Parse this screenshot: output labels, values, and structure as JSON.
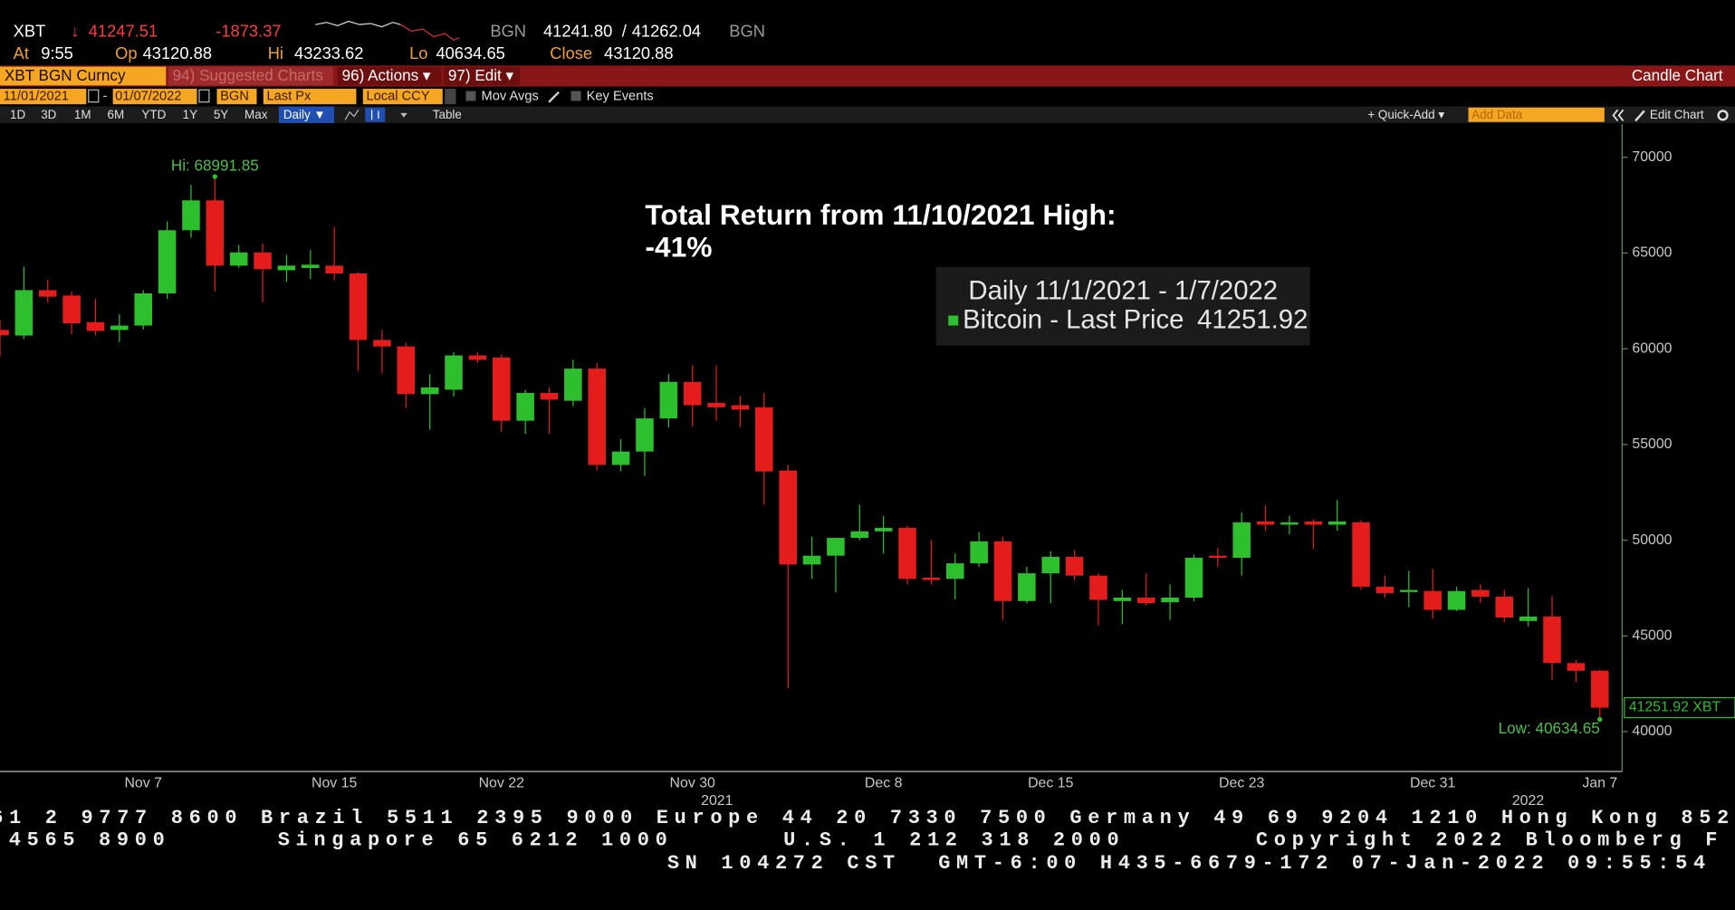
{
  "header": {
    "ticker": "XBT",
    "direction": "↓",
    "last": "41247.51",
    "change": "-1873.37",
    "source": "BGN",
    "bid": "41241.80",
    "separator": "/",
    "ask": "41262.04",
    "source2": "BGN",
    "at_label": "At",
    "time": "9:55",
    "open_label": "Op",
    "open": "43120.88",
    "high_label": "Hi",
    "high": "43233.62",
    "low_label": "Lo",
    "low": "40634.65",
    "close_label": "Close",
    "close": "43120.88"
  },
  "toolbar": {
    "security": "XBT BGN Curncy",
    "menus": [
      "94) Suggested Charts",
      "96) Actions ▾",
      "97) Edit ▾"
    ],
    "chart_kind": "Candle Chart",
    "start_date": "11/01/2021",
    "date_separator": "-",
    "end_date": "01/07/2022",
    "source": "BGN",
    "field": "Last Px",
    "currency": "Local CCY",
    "options": [
      "Mov Avgs",
      "Key Events"
    ],
    "ranges": [
      "1D",
      "3D",
      "1M",
      "6M",
      "YTD",
      "1Y",
      "5Y",
      "Max"
    ],
    "period": "Daily ▼",
    "table": "Table",
    "quick_add": "+ Quick-Add ▾",
    "add_data": "Add Data",
    "edit_chart": "Edit Chart"
  },
  "chart_data": {
    "type": "candlestick",
    "annotations": [
      "Total Return from 11/10/2021 High:",
      "-41%"
    ],
    "legend_title": "Daily 11/1/2021 - 1/7/2022",
    "legend_value": "41251.92",
    "high_label": "Hi: 68991.85",
    "low_label": "Low: 40634.65",
    "last_price_tag": "41251.92 XBT",
    "categories": [
      null,
      null,
      null,
      null,
      null,
      null,
      "Nov 7",
      null,
      null,
      null,
      null,
      null,
      null,
      null,
      "Nov 15",
      null,
      null,
      null,
      null,
      null,
      null,
      "Nov 22",
      null,
      null,
      null,
      null,
      null,
      null,
      null,
      "Nov 30",
      null,
      null,
      null,
      null,
      null,
      null,
      null,
      "Dec 8",
      null,
      null,
      null,
      null,
      null,
      null,
      "Dec 15",
      null,
      null,
      null,
      null,
      null,
      null,
      null,
      "Dec 23",
      null,
      null,
      null,
      null,
      null,
      null,
      null,
      "Dec 31",
      null,
      null,
      null,
      null,
      null,
      null,
      "Jan 7"
    ],
    "year_labels": [
      "2021",
      "2022"
    ],
    "series": [
      {
        "name": "Bitcoin - Last Price",
        "color": "#2dbf2d",
        "open": [
          60980,
          60690,
          63060,
          62780,
          61390,
          60980,
          61210,
          62890,
          66190,
          67750,
          64340,
          65030,
          64100,
          64220,
          64340,
          63930,
          60460,
          60120,
          57630,
          57860,
          59650,
          59540,
          56240,
          57690,
          57280,
          58960,
          53930,
          54630,
          56360,
          58270,
          57170,
          57050,
          56940,
          53640,
          48730,
          49190,
          50120,
          50460,
          50640,
          48040,
          47980,
          48790,
          49940,
          46820,
          48270,
          49130,
          48150,
          46820,
          47000,
          46760,
          47000,
          49190,
          49080,
          50980,
          50810,
          50980,
          50810,
          50930,
          47570,
          47290,
          47340,
          46360,
          47400,
          47050,
          45780,
          46010,
          43580,
          43180
        ],
        "high": [
          61500,
          64280,
          63600,
          63000,
          62600,
          61800,
          63060,
          66650,
          68560,
          68991.85,
          65430,
          65490,
          64900,
          65150,
          66360,
          64000,
          60980,
          60300,
          58670,
          59830,
          59830,
          59700,
          57860,
          57980,
          59420,
          59250,
          55280,
          56900,
          58670,
          59130,
          59130,
          57520,
          57690,
          53930,
          50180,
          50120,
          51850,
          51270,
          50750,
          50000,
          49310,
          50410,
          50180,
          48610,
          49420,
          49480,
          48270,
          47400,
          48270,
          47690,
          49250,
          49600,
          51450,
          51800,
          51270,
          51100,
          52100,
          51050,
          48150,
          48400,
          48500,
          47570,
          47700,
          47400,
          47500,
          47070,
          43750,
          43240
        ],
        "low": [
          59600,
          60500,
          62400,
          60750,
          60700,
          60350,
          61000,
          62600,
          65800,
          63000,
          64220,
          62430,
          63500,
          63640,
          63580,
          58850,
          58700,
          56900,
          55780,
          57500,
          59250,
          55670,
          55550,
          55550,
          57000,
          53640,
          53600,
          53350,
          55900,
          55950,
          56240,
          55900,
          51850,
          42260,
          47980,
          47290,
          50000,
          49300,
          47690,
          47700,
          46900,
          48600,
          45840,
          46700,
          46700,
          47900,
          45550,
          45610,
          46580,
          45840,
          46800,
          48610,
          48150,
          50500,
          50300,
          49540,
          50500,
          47400,
          47000,
          46500,
          45900,
          46300,
          46700,
          45700,
          45500,
          42700,
          42600,
          40634.65
        ],
        "close": [
          60700,
          63060,
          62720,
          61330,
          60930,
          61210,
          62890,
          66190,
          67750,
          64340,
          65030,
          64160,
          64340,
          64390,
          63930,
          60460,
          60120,
          57630,
          57980,
          59650,
          59420,
          56240,
          57690,
          57340,
          58960,
          53930,
          54630,
          56360,
          58270,
          57050,
          56940,
          56820,
          53590,
          48730,
          49190,
          50120,
          50460,
          50640,
          47980,
          47920,
          48790,
          49940,
          46820,
          48270,
          49130,
          48150,
          46880,
          47000,
          46710,
          47000,
          49080,
          49080,
          50930,
          50810,
          50930,
          50810,
          50980,
          47570,
          47230,
          47400,
          46360,
          47340,
          47050,
          45960,
          46010,
          43580,
          43180,
          41251.92
        ]
      }
    ],
    "down_color": "#e51c1c",
    "ylim": [
      37920,
      71730
    ],
    "yticks": [
      40000,
      45000,
      50000,
      55000,
      60000,
      65000,
      70000
    ]
  },
  "footer": {
    "lines": [
      [
        "61 2 9777 8600 Brazil 5511 2395 9000 Europe 44 20 7330 7500 Germany 49 69 9204 1210 Hong Kong 852"
      ],
      [
        "4565 8900",
        "Singapore 65 6212 1000",
        "U.S. 1 212 318 2000",
        "Copyright 2022 Bloomberg F"
      ],
      [
        "SN 104272 CST",
        "GMT-6:00 H435-6679-172 07-Jan-2022 09:55:54"
      ]
    ]
  }
}
